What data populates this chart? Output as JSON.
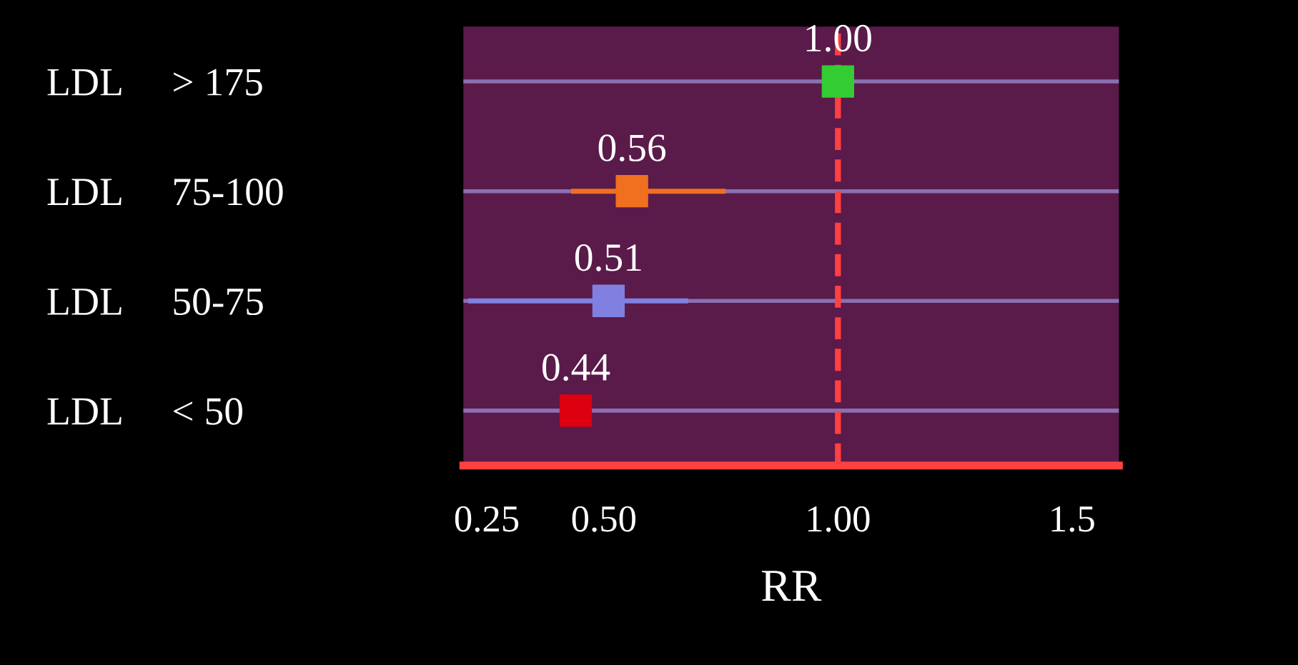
{
  "chart_data": {
    "type": "scatter",
    "orientation": "horizontal",
    "xlabel": "RR",
    "categories": [
      "LDL     > 175",
      "LDL     75-100",
      "LDL     50-75",
      "LDL     < 50"
    ],
    "values": [
      1.0,
      0.56,
      0.51,
      0.44
    ],
    "value_labels": [
      "1.00",
      "0.56",
      "0.51",
      "0.44"
    ],
    "colors": [
      "#33cc33",
      "#f07020",
      "#8080e0",
      "#dd0010"
    ],
    "errors": [
      null,
      [
        0.43,
        0.76
      ],
      [
        0.21,
        0.68
      ],
      null
    ],
    "marker": "square",
    "grid": "y",
    "xlim": [
      0.2,
      1.6
    ],
    "xticks": [
      0.25,
      {
        "value": 0.5,
        "label": "0.50"
      },
      {
        "value": 1.0,
        "label": "1.00"
      },
      1.5
    ],
    "ref_lines": [
      {
        "axis": "x",
        "value": 1.0,
        "color": "#ff4040",
        "line_style": "dashed"
      }
    ]
  }
}
